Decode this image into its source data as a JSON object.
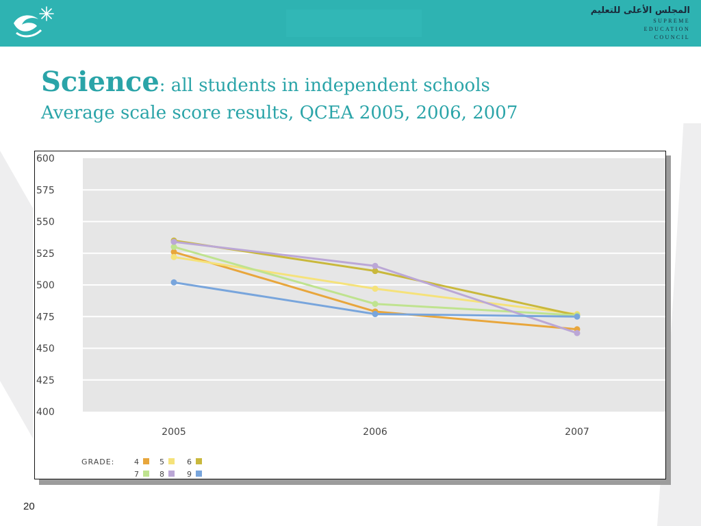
{
  "header": {
    "org_name_ar": "المجلس الأعلى للتعليم",
    "org_name_en": [
      "SUPREME",
      "EDUCATION",
      "COUNCIL"
    ],
    "brand_color": "#2eb3b2"
  },
  "title": {
    "main": "Science",
    "colon": ":",
    "rest": " all students in independent schools",
    "subtitle": "Average scale score results, QCEA 2005, 2006, 2007"
  },
  "chart_data": {
    "type": "line",
    "categories": [
      "2005",
      "2006",
      "2007"
    ],
    "ylim": [
      400,
      600
    ],
    "yticks": [
      "600",
      "575",
      "550",
      "525",
      "500",
      "475",
      "450",
      "425",
      "400"
    ],
    "grid": true,
    "legend_position": "bottom-left",
    "legend_label": "GRADE:",
    "series": [
      {
        "name": "4",
        "color": "#e8a63c",
        "values": [
          526,
          479,
          465
        ]
      },
      {
        "name": "5",
        "color": "#f5e27a",
        "values": [
          522,
          497,
          477
        ]
      },
      {
        "name": "6",
        "color": "#c9b83c",
        "values": [
          535,
          511,
          476
        ]
      },
      {
        "name": "7",
        "color": "#bfe38f",
        "values": [
          530,
          485,
          476
        ]
      },
      {
        "name": "8",
        "color": "#bba7d6",
        "values": [
          534,
          515,
          462
        ]
      },
      {
        "name": "9",
        "color": "#78a5dc",
        "values": [
          502,
          477,
          475
        ]
      }
    ]
  },
  "page": {
    "number": "20"
  }
}
